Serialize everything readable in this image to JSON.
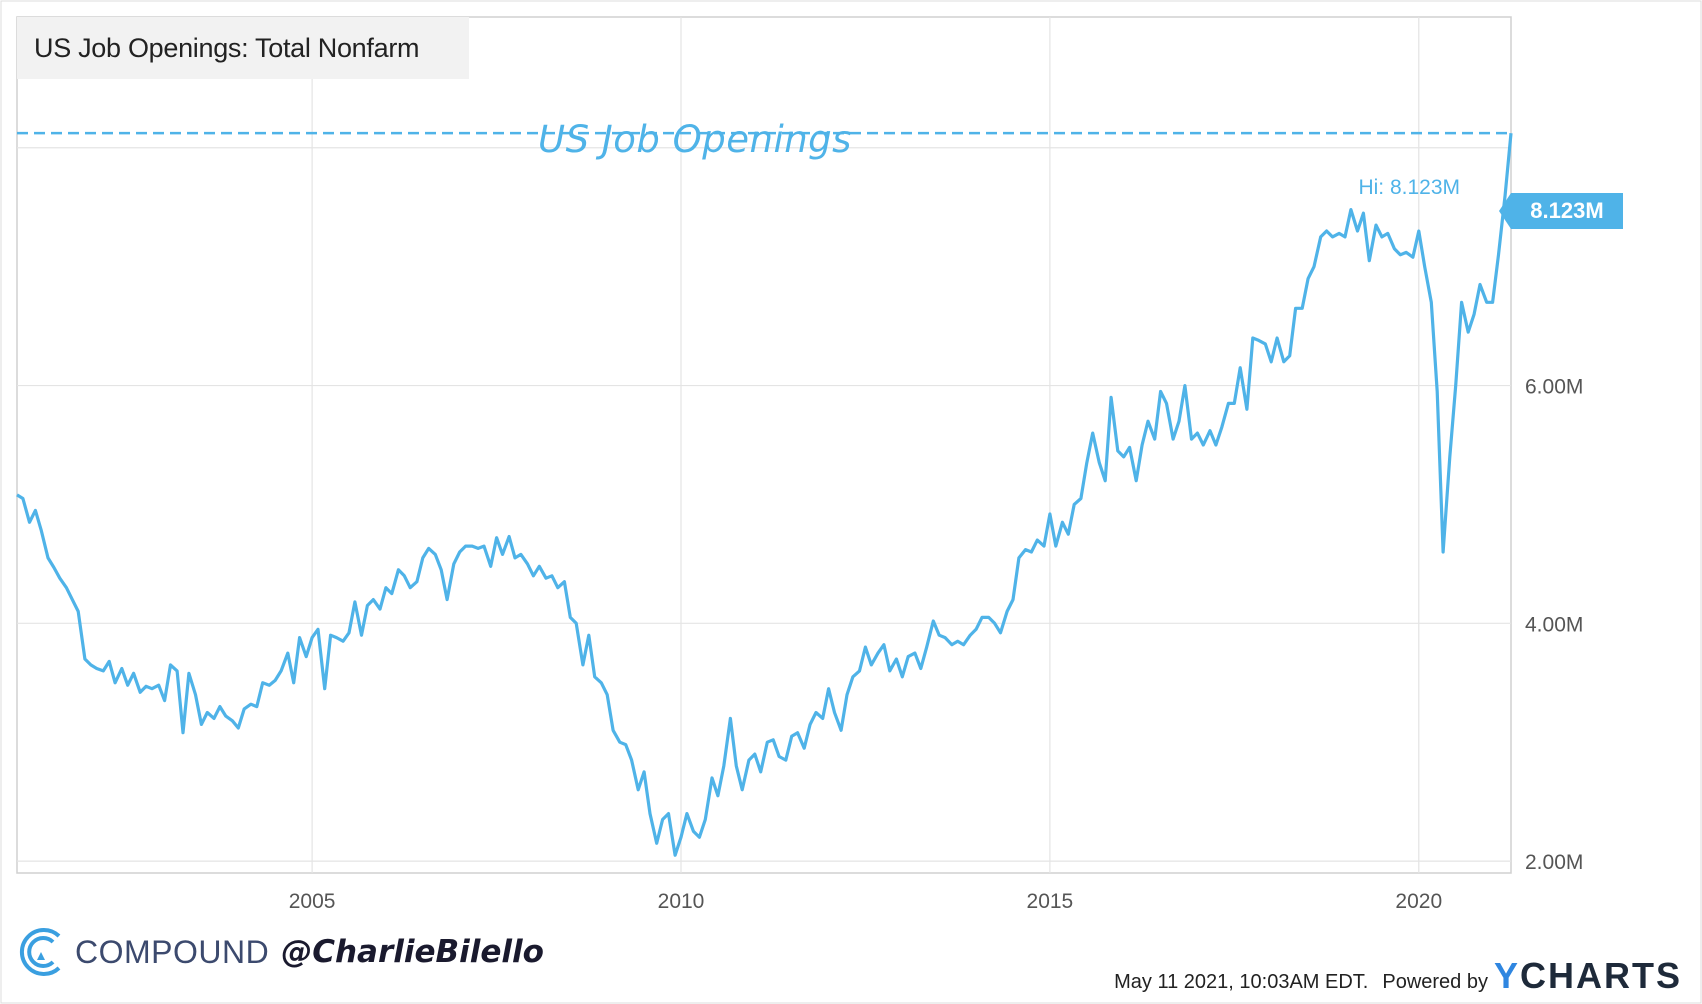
{
  "chart_data": {
    "type": "line",
    "title": "US Job Openings: Total Nonfarm",
    "annotation": "US Job Openings",
    "ylabel": "",
    "xlabel": "",
    "xlim": [
      2001.0,
      2021.25
    ],
    "ylim": [
      1.9,
      9.1
    ],
    "x_ticks": [
      {
        "value": 2005,
        "label": "2005"
      },
      {
        "value": 2010,
        "label": "2010"
      },
      {
        "value": 2015,
        "label": "2015"
      },
      {
        "value": 2020,
        "label": "2020"
      }
    ],
    "y_ticks": [
      {
        "value": 2,
        "label": "2.00M"
      },
      {
        "value": 4,
        "label": "4.00M"
      },
      {
        "value": 6,
        "label": "6.00M"
      }
    ],
    "grid": true,
    "high": {
      "value": 8.123,
      "label": "Hi: 8.123M",
      "badge": "8.123M"
    },
    "series": [
      {
        "color": "#4fb3e8",
        "points": [
          [
            2001.0,
            5.08
          ],
          [
            2001.08,
            5.05
          ],
          [
            2001.17,
            4.85
          ],
          [
            2001.25,
            4.95
          ],
          [
            2001.33,
            4.78
          ],
          [
            2001.42,
            4.55
          ],
          [
            2001.5,
            4.47
          ],
          [
            2001.58,
            4.38
          ],
          [
            2001.67,
            4.3
          ],
          [
            2001.75,
            4.2
          ],
          [
            2001.83,
            4.1
          ],
          [
            2001.92,
            3.7
          ],
          [
            2002.0,
            3.65
          ],
          [
            2002.08,
            3.62
          ],
          [
            2002.17,
            3.6
          ],
          [
            2002.25,
            3.68
          ],
          [
            2002.33,
            3.5
          ],
          [
            2002.42,
            3.62
          ],
          [
            2002.5,
            3.48
          ],
          [
            2002.58,
            3.58
          ],
          [
            2002.67,
            3.42
          ],
          [
            2002.75,
            3.47
          ],
          [
            2002.83,
            3.45
          ],
          [
            2002.92,
            3.48
          ],
          [
            2003.0,
            3.35
          ],
          [
            2003.08,
            3.65
          ],
          [
            2003.17,
            3.6
          ],
          [
            2003.25,
            3.08
          ],
          [
            2003.33,
            3.58
          ],
          [
            2003.42,
            3.4
          ],
          [
            2003.5,
            3.15
          ],
          [
            2003.58,
            3.25
          ],
          [
            2003.67,
            3.2
          ],
          [
            2003.75,
            3.3
          ],
          [
            2003.83,
            3.22
          ],
          [
            2003.92,
            3.18
          ],
          [
            2004.0,
            3.12
          ],
          [
            2004.08,
            3.28
          ],
          [
            2004.17,
            3.32
          ],
          [
            2004.25,
            3.3
          ],
          [
            2004.33,
            3.5
          ],
          [
            2004.42,
            3.48
          ],
          [
            2004.5,
            3.52
          ],
          [
            2004.58,
            3.6
          ],
          [
            2004.67,
            3.75
          ],
          [
            2004.75,
            3.5
          ],
          [
            2004.83,
            3.88
          ],
          [
            2004.92,
            3.72
          ],
          [
            2005.0,
            3.88
          ],
          [
            2005.08,
            3.95
          ],
          [
            2005.17,
            3.45
          ],
          [
            2005.25,
            3.9
          ],
          [
            2005.33,
            3.88
          ],
          [
            2005.42,
            3.85
          ],
          [
            2005.5,
            3.92
          ],
          [
            2005.58,
            4.18
          ],
          [
            2005.67,
            3.9
          ],
          [
            2005.75,
            4.15
          ],
          [
            2005.83,
            4.2
          ],
          [
            2005.92,
            4.12
          ],
          [
            2006.0,
            4.3
          ],
          [
            2006.08,
            4.25
          ],
          [
            2006.17,
            4.45
          ],
          [
            2006.25,
            4.4
          ],
          [
            2006.33,
            4.3
          ],
          [
            2006.42,
            4.35
          ],
          [
            2006.5,
            4.55
          ],
          [
            2006.58,
            4.63
          ],
          [
            2006.67,
            4.58
          ],
          [
            2006.75,
            4.45
          ],
          [
            2006.83,
            4.2
          ],
          [
            2006.92,
            4.5
          ],
          [
            2007.0,
            4.6
          ],
          [
            2007.08,
            4.65
          ],
          [
            2007.17,
            4.65
          ],
          [
            2007.25,
            4.63
          ],
          [
            2007.33,
            4.65
          ],
          [
            2007.42,
            4.48
          ],
          [
            2007.5,
            4.72
          ],
          [
            2007.58,
            4.58
          ],
          [
            2007.67,
            4.73
          ],
          [
            2007.75,
            4.55
          ],
          [
            2007.83,
            4.58
          ],
          [
            2007.92,
            4.5
          ],
          [
            2008.0,
            4.4
          ],
          [
            2008.08,
            4.48
          ],
          [
            2008.17,
            4.38
          ],
          [
            2008.25,
            4.4
          ],
          [
            2008.33,
            4.3
          ],
          [
            2008.42,
            4.35
          ],
          [
            2008.5,
            4.05
          ],
          [
            2008.58,
            4.0
          ],
          [
            2008.67,
            3.65
          ],
          [
            2008.75,
            3.9
          ],
          [
            2008.83,
            3.55
          ],
          [
            2008.92,
            3.5
          ],
          [
            2009.0,
            3.4
          ],
          [
            2009.08,
            3.1
          ],
          [
            2009.17,
            3.0
          ],
          [
            2009.25,
            2.98
          ],
          [
            2009.33,
            2.85
          ],
          [
            2009.42,
            2.6
          ],
          [
            2009.5,
            2.75
          ],
          [
            2009.58,
            2.4
          ],
          [
            2009.67,
            2.15
          ],
          [
            2009.75,
            2.35
          ],
          [
            2009.83,
            2.4
          ],
          [
            2009.92,
            2.05
          ],
          [
            2010.0,
            2.2
          ],
          [
            2010.08,
            2.4
          ],
          [
            2010.17,
            2.25
          ],
          [
            2010.25,
            2.2
          ],
          [
            2010.33,
            2.35
          ],
          [
            2010.42,
            2.7
          ],
          [
            2010.5,
            2.55
          ],
          [
            2010.58,
            2.8
          ],
          [
            2010.67,
            3.2
          ],
          [
            2010.75,
            2.8
          ],
          [
            2010.83,
            2.6
          ],
          [
            2010.92,
            2.85
          ],
          [
            2011.0,
            2.9
          ],
          [
            2011.08,
            2.75
          ],
          [
            2011.17,
            3.0
          ],
          [
            2011.25,
            3.02
          ],
          [
            2011.33,
            2.88
          ],
          [
            2011.42,
            2.85
          ],
          [
            2011.5,
            3.05
          ],
          [
            2011.58,
            3.08
          ],
          [
            2011.67,
            2.95
          ],
          [
            2011.75,
            3.15
          ],
          [
            2011.83,
            3.25
          ],
          [
            2011.92,
            3.2
          ],
          [
            2012.0,
            3.45
          ],
          [
            2012.08,
            3.25
          ],
          [
            2012.17,
            3.1
          ],
          [
            2012.25,
            3.4
          ],
          [
            2012.33,
            3.55
          ],
          [
            2012.42,
            3.6
          ],
          [
            2012.5,
            3.8
          ],
          [
            2012.58,
            3.65
          ],
          [
            2012.67,
            3.75
          ],
          [
            2012.75,
            3.82
          ],
          [
            2012.83,
            3.6
          ],
          [
            2012.92,
            3.7
          ],
          [
            2013.0,
            3.55
          ],
          [
            2013.08,
            3.72
          ],
          [
            2013.17,
            3.75
          ],
          [
            2013.25,
            3.62
          ],
          [
            2013.33,
            3.8
          ],
          [
            2013.42,
            4.02
          ],
          [
            2013.5,
            3.9
          ],
          [
            2013.58,
            3.88
          ],
          [
            2013.67,
            3.82
          ],
          [
            2013.75,
            3.85
          ],
          [
            2013.83,
            3.82
          ],
          [
            2013.92,
            3.9
          ],
          [
            2014.0,
            3.95
          ],
          [
            2014.08,
            4.05
          ],
          [
            2014.17,
            4.05
          ],
          [
            2014.25,
            4.0
          ],
          [
            2014.33,
            3.92
          ],
          [
            2014.42,
            4.1
          ],
          [
            2014.5,
            4.2
          ],
          [
            2014.58,
            4.55
          ],
          [
            2014.67,
            4.62
          ],
          [
            2014.75,
            4.6
          ],
          [
            2014.83,
            4.7
          ],
          [
            2014.92,
            4.65
          ],
          [
            2015.0,
            4.92
          ],
          [
            2015.08,
            4.65
          ],
          [
            2015.17,
            4.85
          ],
          [
            2015.25,
            4.75
          ],
          [
            2015.33,
            5.0
          ],
          [
            2015.42,
            5.05
          ],
          [
            2015.5,
            5.35
          ],
          [
            2015.58,
            5.6
          ],
          [
            2015.67,
            5.35
          ],
          [
            2015.75,
            5.2
          ],
          [
            2015.83,
            5.9
          ],
          [
            2015.92,
            5.45
          ],
          [
            2016.0,
            5.4
          ],
          [
            2016.08,
            5.48
          ],
          [
            2016.17,
            5.2
          ],
          [
            2016.25,
            5.5
          ],
          [
            2016.33,
            5.7
          ],
          [
            2016.42,
            5.55
          ],
          [
            2016.5,
            5.95
          ],
          [
            2016.58,
            5.85
          ],
          [
            2016.67,
            5.55
          ],
          [
            2016.75,
            5.7
          ],
          [
            2016.83,
            6.0
          ],
          [
            2016.92,
            5.55
          ],
          [
            2017.0,
            5.6
          ],
          [
            2017.08,
            5.5
          ],
          [
            2017.17,
            5.62
          ],
          [
            2017.25,
            5.5
          ],
          [
            2017.33,
            5.65
          ],
          [
            2017.42,
            5.85
          ],
          [
            2017.5,
            5.85
          ],
          [
            2017.58,
            6.15
          ],
          [
            2017.67,
            5.8
          ],
          [
            2017.75,
            6.4
          ],
          [
            2017.83,
            6.38
          ],
          [
            2017.92,
            6.35
          ],
          [
            2018.0,
            6.2
          ],
          [
            2018.08,
            6.4
          ],
          [
            2018.17,
            6.2
          ],
          [
            2018.25,
            6.25
          ],
          [
            2018.33,
            6.65
          ],
          [
            2018.42,
            6.65
          ],
          [
            2018.5,
            6.9
          ],
          [
            2018.58,
            7.0
          ],
          [
            2018.67,
            7.25
          ],
          [
            2018.75,
            7.3
          ],
          [
            2018.83,
            7.25
          ],
          [
            2018.92,
            7.28
          ],
          [
            2019.0,
            7.25
          ],
          [
            2019.08,
            7.48
          ],
          [
            2019.17,
            7.3
          ],
          [
            2019.25,
            7.45
          ],
          [
            2019.33,
            7.05
          ],
          [
            2019.42,
            7.35
          ],
          [
            2019.5,
            7.25
          ],
          [
            2019.58,
            7.28
          ],
          [
            2019.67,
            7.15
          ],
          [
            2019.75,
            7.1
          ],
          [
            2019.83,
            7.12
          ],
          [
            2019.92,
            7.08
          ],
          [
            2020.0,
            7.3
          ],
          [
            2020.08,
            7.0
          ],
          [
            2020.17,
            6.7
          ],
          [
            2020.25,
            5.95
          ],
          [
            2020.33,
            4.6
          ],
          [
            2020.42,
            5.4
          ],
          [
            2020.5,
            6.0
          ],
          [
            2020.58,
            6.7
          ],
          [
            2020.67,
            6.45
          ],
          [
            2020.75,
            6.6
          ],
          [
            2020.83,
            6.85
          ],
          [
            2020.92,
            6.7
          ],
          [
            2021.0,
            6.7
          ],
          [
            2021.08,
            7.1
          ],
          [
            2021.17,
            7.6
          ],
          [
            2021.25,
            8.123
          ]
        ]
      }
    ]
  },
  "branding": {
    "logo": "compound-logo",
    "name": "COMPOUND",
    "handle": "@CharlieBilello"
  },
  "footer": {
    "timestamp": "May 11 2021, 10:03AM EDT.",
    "powered_by": "Powered by",
    "ycharts_y": "Y",
    "ycharts_rest": "CHARTS"
  }
}
